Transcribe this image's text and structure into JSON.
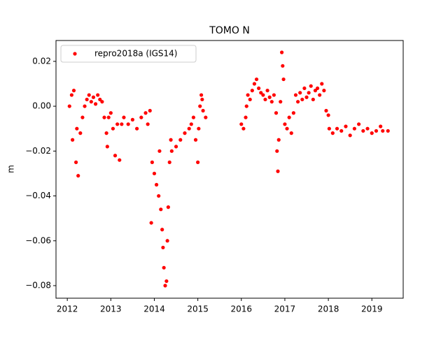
{
  "chart_data": {
    "type": "scatter",
    "title": "TOMO N",
    "y_label": "m",
    "legend": "upper left",
    "series": [
      {
        "name": "repro2018a (IGS14)",
        "color": "#ff0000",
        "x": [
          2012.05,
          2012.1,
          2012.12,
          2012.15,
          2012.2,
          2012.22,
          2012.25,
          2012.3,
          2012.35,
          2012.4,
          2012.45,
          2012.5,
          2012.55,
          2012.6,
          2012.65,
          2012.7,
          2012.75,
          2012.8,
          2012.85,
          2012.9,
          2012.92,
          2012.95,
          2013.0,
          2013.05,
          2013.1,
          2013.15,
          2013.2,
          2013.25,
          2013.3,
          2013.4,
          2013.5,
          2013.6,
          2013.7,
          2013.8,
          2013.85,
          2013.9,
          2013.93,
          2013.95,
          2014.0,
          2014.05,
          2014.1,
          2014.12,
          2014.15,
          2014.18,
          2014.2,
          2014.22,
          2014.25,
          2014.28,
          2014.3,
          2014.32,
          2014.35,
          2014.38,
          2014.4,
          2014.5,
          2014.6,
          2014.7,
          2014.8,
          2014.85,
          2014.9,
          2014.95,
          2015.0,
          2015.02,
          2015.05,
          2015.08,
          2015.1,
          2015.12,
          2015.18,
          2016.0,
          2016.05,
          2016.1,
          2016.12,
          2016.15,
          2016.2,
          2016.25,
          2016.3,
          2016.35,
          2016.4,
          2016.45,
          2016.5,
          2016.55,
          2016.6,
          2016.65,
          2016.7,
          2016.75,
          2016.8,
          2016.82,
          2016.84,
          2016.86,
          2016.9,
          2016.93,
          2016.95,
          2016.97,
          2017.0,
          2017.05,
          2017.1,
          2017.15,
          2017.2,
          2017.25,
          2017.3,
          2017.35,
          2017.4,
          2017.45,
          2017.5,
          2017.55,
          2017.6,
          2017.65,
          2017.7,
          2017.75,
          2017.8,
          2017.85,
          2017.9,
          2017.95,
          2018.0,
          2018.02,
          2018.1,
          2018.2,
          2018.3,
          2018.4,
          2018.5,
          2018.6,
          2018.7,
          2018.8,
          2018.9,
          2019.0,
          2019.1,
          2019.2,
          2019.25,
          2019.37
        ],
        "values": [
          0.0,
          0.005,
          -0.015,
          0.007,
          -0.025,
          -0.01,
          -0.031,
          -0.012,
          -0.005,
          0.0,
          0.003,
          0.005,
          0.002,
          0.004,
          0.001,
          0.005,
          0.003,
          0.002,
          -0.005,
          -0.012,
          -0.018,
          -0.005,
          -0.003,
          -0.01,
          -0.022,
          -0.008,
          -0.024,
          -0.008,
          -0.005,
          -0.008,
          -0.006,
          -0.01,
          -0.005,
          -0.003,
          -0.008,
          -0.002,
          -0.052,
          -0.025,
          -0.03,
          -0.035,
          -0.04,
          -0.02,
          -0.046,
          -0.055,
          -0.063,
          -0.072,
          -0.08,
          -0.078,
          -0.06,
          -0.045,
          -0.025,
          -0.015,
          -0.02,
          -0.018,
          -0.015,
          -0.012,
          -0.01,
          -0.008,
          -0.005,
          -0.015,
          -0.025,
          -0.01,
          0.0,
          0.005,
          0.003,
          -0.002,
          -0.005,
          -0.008,
          -0.01,
          -0.005,
          0.0,
          0.005,
          0.003,
          0.007,
          0.01,
          0.012,
          0.008,
          0.006,
          0.005,
          0.003,
          0.007,
          0.004,
          0.002,
          0.005,
          -0.003,
          -0.02,
          -0.029,
          -0.015,
          0.002,
          0.024,
          0.018,
          0.012,
          -0.008,
          -0.01,
          -0.005,
          -0.012,
          -0.003,
          0.005,
          0.002,
          0.006,
          0.003,
          0.008,
          0.004,
          0.006,
          0.009,
          0.003,
          0.007,
          0.008,
          0.005,
          0.01,
          0.007,
          -0.002,
          -0.004,
          -0.01,
          -0.012,
          -0.01,
          -0.011,
          -0.009,
          -0.013,
          -0.01,
          -0.008,
          -0.011,
          -0.01,
          -0.012,
          -0.011,
          -0.009,
          -0.011,
          -0.011
        ]
      }
    ],
    "xlim": [
      2011.74,
      2019.72
    ],
    "xticks": [
      2012,
      2013,
      2014,
      2015,
      2016,
      2017,
      2018,
      2019
    ],
    "ylim": [
      -0.0856,
      0.0293
    ],
    "yticks": [
      {
        "value": 0.02,
        "label": "0.02"
      },
      {
        "value": 0,
        "label": "0.00"
      },
      {
        "value": -0.02,
        "label": "−0.02"
      },
      {
        "value": -0.04,
        "label": "−0.04"
      },
      {
        "value": -0.06,
        "label": "−0.06"
      },
      {
        "value": -0.08,
        "label": "−0.08"
      }
    ]
  }
}
